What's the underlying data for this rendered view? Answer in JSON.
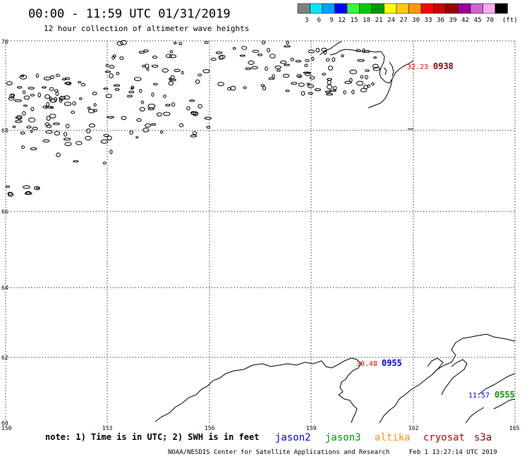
{
  "title": "00:00 - 11:59 UTC 01/31/2019",
  "subtitle": "12 hour collection of altimeter wave heights",
  "legend": {
    "unit": "(ft)",
    "swatches": [
      {
        "value": "3",
        "color": "#808080"
      },
      {
        "value": "6",
        "color": "#00e5ff"
      },
      {
        "value": "9",
        "color": "#00a0ff"
      },
      {
        "value": "12",
        "color": "#0000ff"
      },
      {
        "value": "15",
        "color": "#33ff33"
      },
      {
        "value": "18",
        "color": "#00cc00"
      },
      {
        "value": "21",
        "color": "#009900"
      },
      {
        "value": "24",
        "color": "#ffff00"
      },
      {
        "value": "27",
        "color": "#ffcc00"
      },
      {
        "value": "30",
        "color": "#ff9900"
      },
      {
        "value": "33",
        "color": "#ff0000"
      },
      {
        "value": "36",
        "color": "#cc0000"
      },
      {
        "value": "39",
        "color": "#990000"
      },
      {
        "value": "42",
        "color": "#990099"
      },
      {
        "value": "45",
        "color": "#cc66cc"
      },
      {
        "value": "70",
        "color": "#ffaaee"
      },
      {
        "value": "",
        "color": "#000000"
      }
    ]
  },
  "axes": {
    "lat_labels": [
      "70",
      "68",
      "66",
      "64",
      "62",
      "60"
    ],
    "lon_labels": [
      "150",
      "153",
      "156",
      "159",
      "162",
      "165"
    ]
  },
  "observations": [
    {
      "value": "32.23",
      "time": "0938",
      "value_color": "#ff0000",
      "time_color": "#990000"
    },
    {
      "value": "30.48",
      "time": "0955",
      "value_color": "#ff0000",
      "time_color": "#0000ff"
    },
    {
      "value": "11.57",
      "time": "0555",
      "value_color": "#0000ff",
      "time_color": "#009900"
    }
  ],
  "footer": {
    "note": "note: 1) Time is in UTC; 2) SWH is in feet",
    "satellites": [
      {
        "name": "jason2",
        "color": "#0000ff"
      },
      {
        "name": "jason3",
        "color": "#009900"
      },
      {
        "name": "altika",
        "color": "#ff9900"
      },
      {
        "name": "cryosat",
        "color": "#cc0000"
      },
      {
        "name": "s3a",
        "color": "#990000"
      }
    ],
    "credit": "NOAA/NESDIS Center for Satellite Applications and Research",
    "timestamp": "Feb  1 13:27:14 UTC 2019"
  }
}
